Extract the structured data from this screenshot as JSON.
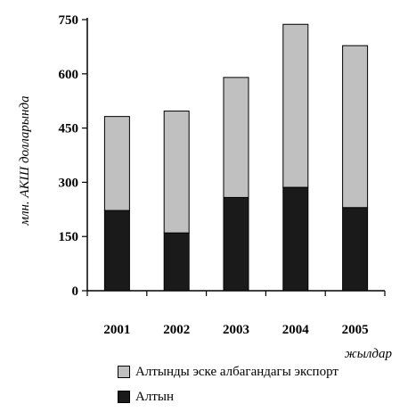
{
  "chart_data": {
    "type": "bar",
    "stacked": true,
    "categories": [
      "2001",
      "2002",
      "2003",
      "2004",
      "2005"
    ],
    "series": [
      {
        "name": "Алтын",
        "values": [
          222,
          160,
          258,
          286,
          230
        ],
        "color": "#1a1a1a"
      },
      {
        "name": "Алтынды эске албагандагы экспорт",
        "values": [
          260,
          337,
          332,
          451,
          448
        ],
        "color": "#c0c0c0"
      }
    ],
    "yticks": [
      "0",
      "150",
      "300",
      "450",
      "600",
      "750"
    ],
    "ylim": [
      0,
      750
    ],
    "ylabel": "млн. АКШ долларында",
    "xlabel": "жылдар",
    "grid": false,
    "legend_position": "bottom"
  }
}
